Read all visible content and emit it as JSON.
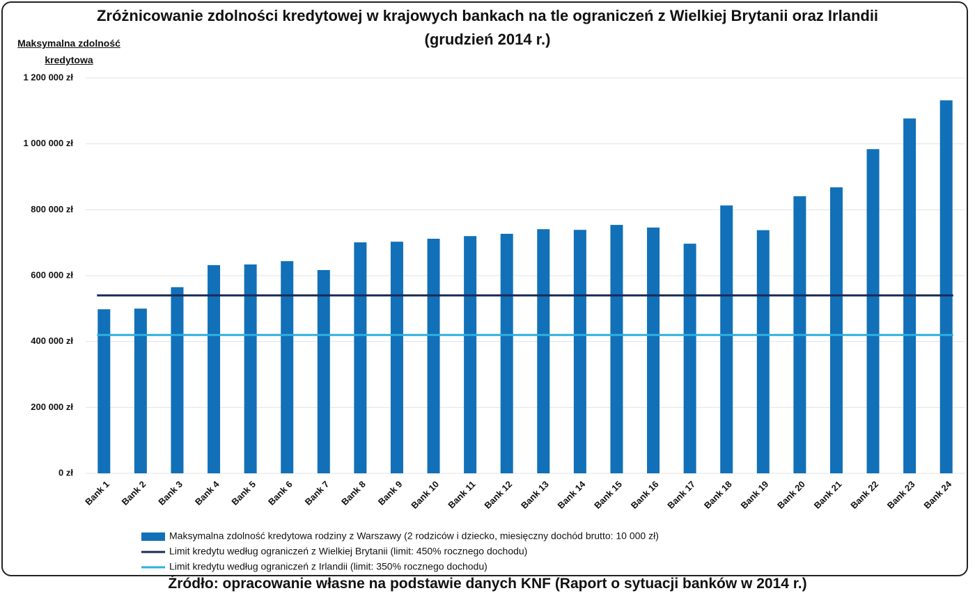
{
  "chart_data": {
    "type": "bar",
    "title": "Zróżnicowanie zdolności kredytowej w krajowych bankach na tle ograniczeń z Wielkiej Brytanii oraz Irlandii (grudzień 2014 r.)",
    "y_label": "Maksymalna zdolność kredytowa",
    "source": "Źródło: opracowanie własne na podstawie danych KNF (Raport o sytuacji banków w 2014 r.)",
    "categories": [
      "Bank 1",
      "Bank 2",
      "Bank 3",
      "Bank 4",
      "Bank 5",
      "Bank 6",
      "Bank 7",
      "Bank 8",
      "Bank 9",
      "Bank 10",
      "Bank 11",
      "Bank 12",
      "Bank 13",
      "Bank 14",
      "Bank 15",
      "Bank 16",
      "Bank 17",
      "Bank 18",
      "Bank 19",
      "Bank 20",
      "Bank 21",
      "Bank 22",
      "Bank 23",
      "Bank 24"
    ],
    "series": [
      {
        "name": "Maksymalna zdolność kredytowa rodziny z Warszawy (2 rodziców i dziecko, miesięczny dochód brutto: 10 000 zł)",
        "color": "#1170b8",
        "values": [
          498000,
          500000,
          565000,
          632000,
          634000,
          644000,
          617000,
          701000,
          703000,
          712000,
          720000,
          727000,
          741000,
          739000,
          754000,
          746000,
          697000,
          813000,
          738000,
          841000,
          868000,
          984000,
          1077000,
          1132000
        ]
      }
    ],
    "reference_lines": [
      {
        "name": "Limit kredytu według ograniczeń z Wielkiej Brytanii (limit: 450% rocznego dochodu)",
        "color": "#1c2b57",
        "value": 540000
      },
      {
        "name": "Limit kredytu według ograniczeń z Irlandii (limit: 350% rocznego dochodu)",
        "color": "#2eb0e0",
        "value": 420000
      }
    ],
    "ylim": [
      0,
      1200000
    ],
    "yticks": [
      {
        "value": 0,
        "label": "0 zł"
      },
      {
        "value": 200000,
        "label": "200 000 zł"
      },
      {
        "value": 400000,
        "label": "400 000 zł"
      },
      {
        "value": 600000,
        "label": "600 000 zł"
      },
      {
        "value": 800000,
        "label": "800 000 zł"
      },
      {
        "value": 1000000,
        "label": "1 000 000 zł"
      },
      {
        "value": 1200000,
        "label": "1 200 000 zł"
      }
    ],
    "grid": true
  }
}
